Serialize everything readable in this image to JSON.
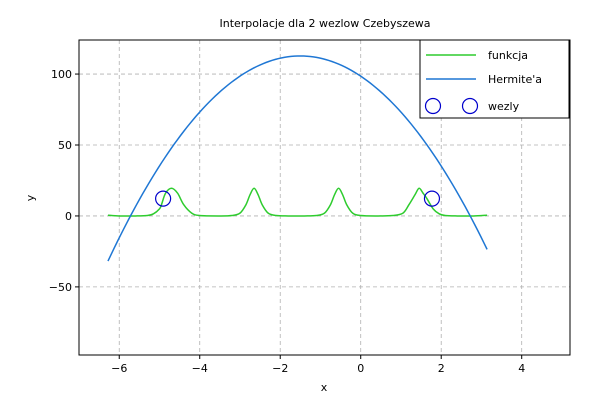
{
  "chart_data": {
    "type": "line",
    "title": "Interpolacje dla 2 wezlow Czebyszewa",
    "xlabel": "x",
    "ylabel": "y",
    "xlim": [
      -7.0,
      5.2
    ],
    "ylim": [
      -98,
      124
    ],
    "xticks": [
      -6,
      -4,
      -2,
      0,
      2,
      4
    ],
    "yticks": [
      -50,
      0,
      50,
      100
    ],
    "xtick_labels": [
      "−6",
      "−4",
      "−2",
      "0",
      "2",
      "4"
    ],
    "ytick_labels": [
      "−50",
      "0",
      "50",
      "100"
    ],
    "grid": true,
    "legend_position": "top-right",
    "legend": [
      {
        "label": "funkcja",
        "kind": "line",
        "color": "#2ecc2e"
      },
      {
        "label": "Hermite'a",
        "kind": "line",
        "color": "#1f77d4"
      },
      {
        "label": "wezly",
        "kind": "marker",
        "color": "#0000cc"
      }
    ],
    "series": [
      {
        "name": "funkcja",
        "color": "#2ecc2e",
        "x": [
          -6.28,
          -6.0,
          -5.6,
          -5.3,
          -5.15,
          -5.0,
          -4.95,
          -4.85,
          -4.7,
          -4.55,
          -4.4,
          -4.2,
          -4.0,
          -3.5,
          -3.2,
          -3.0,
          -2.85,
          -2.75,
          -2.65,
          -2.55,
          -2.45,
          -2.3,
          -2.1,
          -1.8,
          -1.4,
          -1.1,
          -0.9,
          -0.75,
          -0.65,
          -0.55,
          -0.45,
          -0.35,
          -0.2,
          0.0,
          0.4,
          0.8,
          1.05,
          1.2,
          1.35,
          1.45,
          1.55,
          1.65,
          1.8,
          1.95,
          2.1,
          2.4,
          2.8,
          3.14
        ],
        "y": [
          0.5,
          0,
          0,
          0.3,
          1.5,
          5,
          8,
          16,
          19.5,
          16,
          8,
          2,
          0.3,
          0,
          0.3,
          2,
          8,
          15,
          19.5,
          15,
          8,
          2,
          0.3,
          0,
          0,
          0.3,
          2,
          8,
          15,
          19.5,
          15,
          8,
          2,
          0.3,
          0,
          0.3,
          2,
          8,
          15,
          19.5,
          16,
          12,
          5,
          1.5,
          0.3,
          0,
          0,
          0.5
        ]
      },
      {
        "name": "Hermite'a",
        "color": "#1f77d4",
        "poly_coeffs": [
          -6.33,
          -19.0,
          98.5
        ],
        "x_range": [
          -6.28,
          3.14
        ]
      }
    ],
    "nodes": {
      "name": "wezly",
      "color": "#0000cc",
      "x": [
        -4.91,
        1.77
      ],
      "y": [
        12.2,
        12.2
      ]
    }
  }
}
